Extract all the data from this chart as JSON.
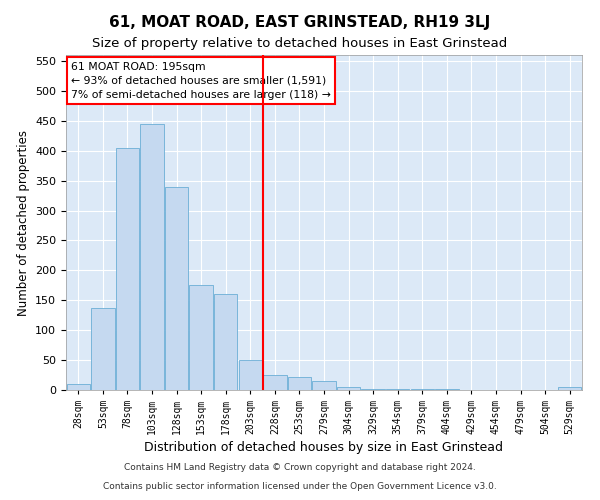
{
  "title": "61, MOAT ROAD, EAST GRINSTEAD, RH19 3LJ",
  "subtitle": "Size of property relative to detached houses in East Grinstead",
  "xlabel": "Distribution of detached houses by size in East Grinstead",
  "ylabel": "Number of detached properties",
  "categories": [
    "28sqm",
    "53sqm",
    "78sqm",
    "103sqm",
    "128sqm",
    "153sqm",
    "178sqm",
    "203sqm",
    "228sqm",
    "253sqm",
    "279sqm",
    "304sqm",
    "329sqm",
    "354sqm",
    "379sqm",
    "404sqm",
    "429sqm",
    "454sqm",
    "479sqm",
    "504sqm",
    "529sqm"
  ],
  "values": [
    10,
    137,
    405,
    445,
    340,
    175,
    160,
    50,
    25,
    22,
    15,
    5,
    2,
    1,
    1,
    1,
    0,
    0,
    0,
    0,
    5
  ],
  "bar_color": "#c5d9f0",
  "bar_edge_color": "#6baed6",
  "vline_x": 7.5,
  "vline_color": "red",
  "annotation_text": "61 MOAT ROAD: 195sqm\n← 93% of detached houses are smaller (1,591)\n7% of semi-detached houses are larger (118) →",
  "annotation_box_color": "white",
  "annotation_box_edge": "red",
  "ylim": [
    0,
    560
  ],
  "yticks": [
    0,
    50,
    100,
    150,
    200,
    250,
    300,
    350,
    400,
    450,
    500,
    550
  ],
  "footer1": "Contains HM Land Registry data © Crown copyright and database right 2024.",
  "footer2": "Contains public sector information licensed under the Open Government Licence v3.0.",
  "background_color": "#dce9f7",
  "fig_bg_color": "#ffffff",
  "title_fontsize": 11,
  "subtitle_fontsize": 9.5,
  "xlabel_fontsize": 9,
  "ylabel_fontsize": 8.5
}
